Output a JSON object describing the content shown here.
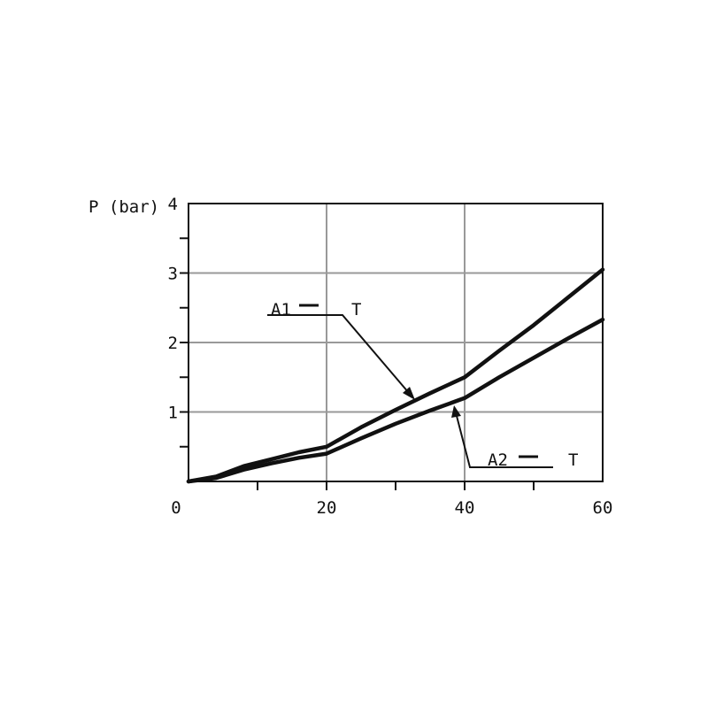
{
  "chart_data": {
    "type": "line",
    "title": "",
    "xlabel": "",
    "ylabel": "P (bar)",
    "xlim": [
      0,
      60
    ],
    "ylim": [
      0,
      4
    ],
    "xticks": [
      {
        "v": 0,
        "label": "0"
      },
      {
        "v": 20,
        "label": "20"
      },
      {
        "v": 40,
        "label": "40"
      },
      {
        "v": 60,
        "label": "60"
      }
    ],
    "yticks": [
      {
        "v": 1,
        "label": "1"
      },
      {
        "v": 2,
        "label": "2"
      },
      {
        "v": 3,
        "label": "3"
      },
      {
        "v": 4,
        "label": "4"
      }
    ],
    "grid": true,
    "series": [
      {
        "name": "A1 — T",
        "x": [
          0,
          4,
          8,
          12,
          16,
          20,
          25,
          30,
          35,
          40,
          45,
          50,
          55,
          60
        ],
        "y": [
          0,
          0.07,
          0.22,
          0.32,
          0.42,
          0.5,
          0.78,
          1.03,
          1.27,
          1.5,
          1.88,
          2.25,
          2.65,
          3.05
        ]
      },
      {
        "name": "A2 — T",
        "x": [
          0,
          4,
          8,
          12,
          16,
          20,
          25,
          30,
          35,
          40,
          45,
          50,
          55,
          60
        ],
        "y": [
          0,
          0.05,
          0.17,
          0.26,
          0.34,
          0.4,
          0.62,
          0.83,
          1.02,
          1.2,
          1.5,
          1.78,
          2.06,
          2.33
        ]
      }
    ],
    "annotations": [
      {
        "series": 0,
        "text_left": "A1",
        "text_right": "T"
      },
      {
        "series": 1,
        "text_left": "A2",
        "text_right": "T"
      }
    ]
  }
}
